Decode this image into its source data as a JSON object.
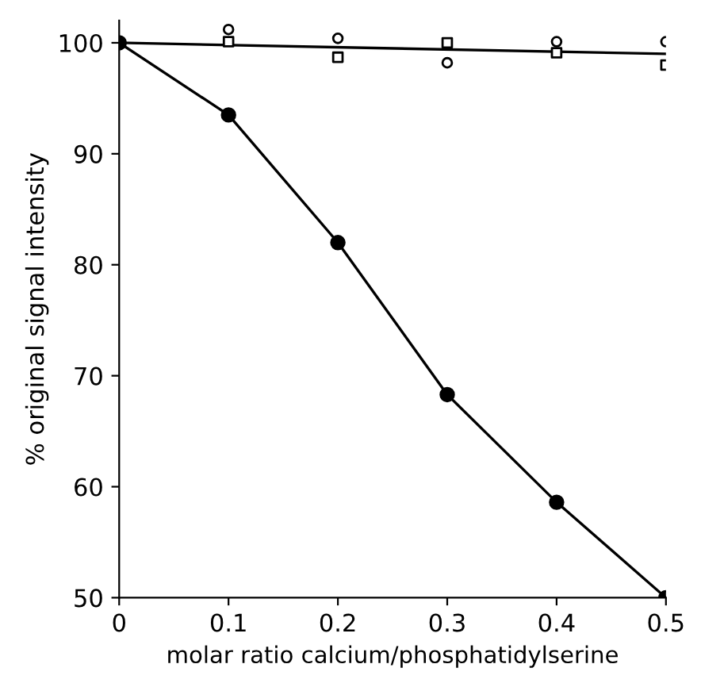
{
  "chart_data": {
    "type": "line",
    "xlabel": "molar ratio calcium/phosphatidylserine",
    "ylabel": "% original signal intensity",
    "x": [
      0,
      0.1,
      0.2,
      0.3,
      0.4,
      0.5
    ],
    "series": [
      {
        "color": "#000000",
        "marker": "circle",
        "values": [
          100,
          93.5,
          82.0,
          68.3,
          58.6,
          50
        ]
      },
      {
        "type": "scatter",
        "color": "#000000",
        "marker": "circle",
        "values": [
          null,
          101.2,
          100.4,
          98.2,
          100.1,
          100.1
        ]
      },
      {
        "type": "scatter",
        "color": "#000000",
        "marker": "square",
        "values": [
          null,
          100.1,
          98.7,
          100.0,
          99.1,
          98.0
        ]
      },
      {
        "color": "#000000",
        "marker": "none",
        "x": [
          0,
          0.5
        ],
        "values": [
          100,
          99.0
        ]
      }
    ],
    "xlim": [
      0,
      0.5
    ],
    "ylim": [
      50,
      102
    ],
    "xticks": [
      0,
      0.1,
      0.2,
      0.3,
      0.4,
      0.5
    ],
    "yticks": [
      50,
      60,
      70,
      80,
      90,
      100
    ],
    "grid": false,
    "legend": false
  }
}
